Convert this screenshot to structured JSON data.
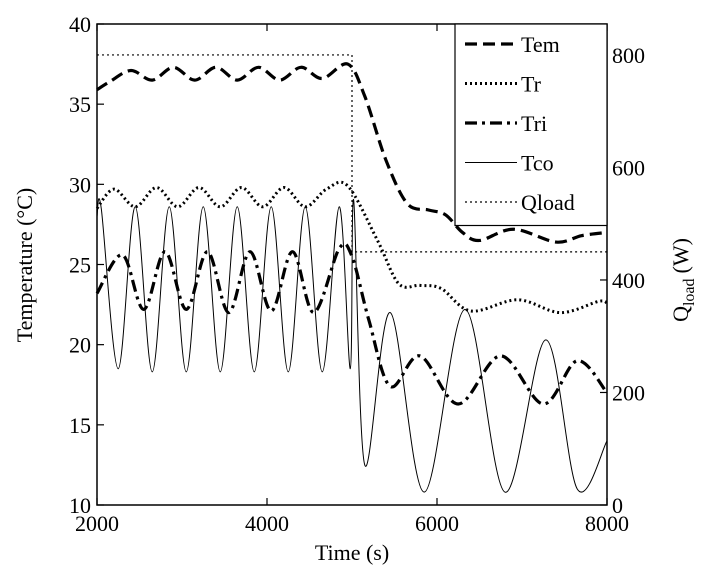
{
  "chart_data": {
    "type": "line",
    "xlabel": "Time (s)",
    "ylabel": "Temperature (°C)",
    "y2label": {
      "main": "Q",
      "sub": "load",
      "unit": "(W)"
    },
    "xlim": [
      2000,
      8000
    ],
    "xticks": [
      2000,
      4000,
      6000,
      8000
    ],
    "ylim": [
      10,
      40
    ],
    "yticks": [
      10,
      15,
      20,
      25,
      30,
      35,
      40
    ],
    "y2lim": [
      0,
      855
    ],
    "y2ticks": [
      0,
      200,
      400,
      600,
      800
    ],
    "legend": "upper right",
    "series": [
      {
        "name": "Tem",
        "color": "#000000",
        "style": "dashed",
        "width": 3.2,
        "x": [
          2000,
          2150,
          2400,
          2650,
          2900,
          3150,
          3400,
          3650,
          3900,
          4150,
          4400,
          4650,
          4950,
          5150,
          5400,
          5650,
          5900,
          6100,
          6300,
          6500,
          6900,
          7400,
          7700,
          8000
        ],
        "values": [
          35.9,
          36.4,
          37.1,
          36.5,
          37.3,
          36.5,
          37.3,
          36.5,
          37.3,
          36.5,
          37.3,
          36.6,
          37.5,
          35.5,
          31.5,
          28.8,
          28.4,
          28.1,
          27.0,
          26.5,
          27.2,
          26.4,
          26.8,
          27.0
        ]
      },
      {
        "name": "Tr",
        "color": "#000000",
        "style": "dotted",
        "width": 3,
        "x": [
          2000,
          2200,
          2450,
          2700,
          2950,
          3200,
          3450,
          3700,
          3950,
          4200,
          4450,
          4700,
          4950,
          5300,
          5550,
          5800,
          6050,
          6400,
          6950,
          7450,
          7900,
          8000
        ],
        "values": [
          28.5,
          29.7,
          28.6,
          29.8,
          28.6,
          29.8,
          28.6,
          29.8,
          28.6,
          29.8,
          28.6,
          29.7,
          29.9,
          26.5,
          23.8,
          23.7,
          23.5,
          22.1,
          22.8,
          22.0,
          22.7,
          22.6
        ]
      },
      {
        "name": "Tri",
        "color": "#000000",
        "style": "dashdot",
        "width": 3.2,
        "x": [
          2000,
          2300,
          2550,
          2800,
          3050,
          3300,
          3550,
          3800,
          4050,
          4300,
          4550,
          4850,
          5000,
          5200,
          5450,
          5800,
          6250,
          6750,
          7250,
          7650,
          8000
        ],
        "values": [
          23.2,
          25.6,
          22.2,
          25.8,
          22.2,
          25.8,
          22.0,
          25.8,
          22.1,
          25.8,
          22.0,
          26.0,
          25.5,
          21.5,
          17.4,
          19.3,
          16.3,
          19.3,
          16.3,
          19.0,
          17.0
        ]
      },
      {
        "name": "Tco",
        "color": "#000000",
        "style": "solid",
        "width": 1,
        "x": [
          2000,
          2050,
          2250,
          2450,
          2650,
          2850,
          3050,
          3250,
          3450,
          3650,
          3850,
          4050,
          4250,
          4450,
          4650,
          4850,
          4980,
          5020,
          5150,
          5450,
          5850,
          6330,
          6800,
          7280,
          7650,
          8000
        ],
        "values": [
          28.0,
          28.5,
          18.5,
          28.6,
          18.3,
          28.6,
          18.3,
          28.6,
          18.3,
          28.6,
          18.3,
          28.6,
          18.3,
          28.6,
          18.3,
          28.6,
          18.5,
          29.0,
          12.5,
          22.0,
          10.8,
          22.2,
          10.8,
          20.3,
          11.0,
          14.0
        ]
      },
      {
        "name": "Qload",
        "color": "#000000",
        "style": "dotted",
        "width": 1.2,
        "axis": "y2",
        "x": [
          2000,
          5000,
          5000,
          8000
        ],
        "values": [
          800,
          800,
          450,
          450
        ]
      }
    ]
  }
}
